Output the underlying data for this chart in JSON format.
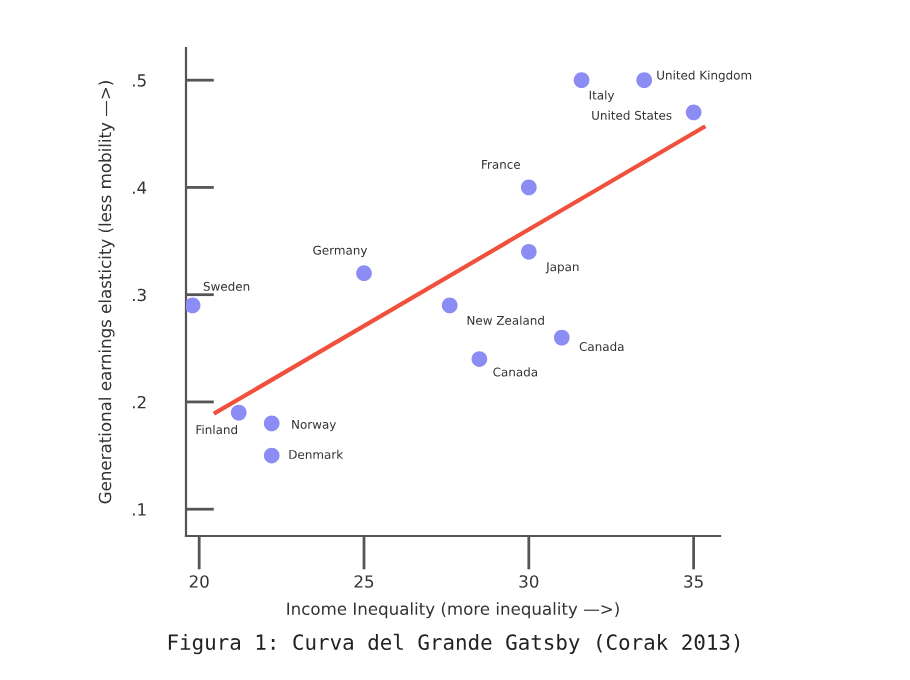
{
  "chart_data": {
    "type": "scatter",
    "xlabel": "Income Inequality (more inequality —>)",
    "ylabel": "Generational earnings elasticity (less mobility —>)",
    "xlim": [
      19.6,
      35.8
    ],
    "ylim": [
      0.075,
      0.53
    ],
    "xticks": [
      20,
      25,
      30,
      35
    ],
    "yticks": [
      {
        "value": 0.1,
        "label": ".1"
      },
      {
        "value": 0.2,
        "label": ".2"
      },
      {
        "value": 0.3,
        "label": ".3"
      },
      {
        "value": 0.4,
        "label": ".4"
      },
      {
        "value": 0.5,
        "label": ".5"
      }
    ],
    "grid": false,
    "series": [
      {
        "type": "scatter",
        "color": "#8c8cf5",
        "marker": "circle",
        "x": [
          19.8,
          25,
          21.2,
          22.2,
          22.2,
          27.6,
          28.5,
          31,
          30,
          30,
          31.6,
          33.5,
          35
        ],
        "values": [
          0.29,
          0.32,
          0.19,
          0.18,
          0.15,
          0.29,
          0.24,
          0.26,
          0.34,
          0.4,
          0.5,
          0.5,
          0.47
        ]
      },
      {
        "type": "line",
        "color": "#f0503c",
        "line_style": "solid",
        "x": [
          20.5,
          35.3
        ],
        "values": [
          0.19,
          0.456
        ]
      }
    ],
    "annotations": [
      {
        "text": "Sweden",
        "x": 19.8,
        "y": 0.29
      },
      {
        "text": "Germany",
        "x": 25,
        "y": 0.32
      },
      {
        "text": "Finland",
        "x": 21.2,
        "y": 0.19
      },
      {
        "text": "Norway",
        "x": 22.2,
        "y": 0.18
      },
      {
        "text": "Denmark",
        "x": 22.2,
        "y": 0.15
      },
      {
        "text": "New Zealand",
        "x": 27.6,
        "y": 0.29
      },
      {
        "text": "Canada",
        "x": 28.5,
        "y": 0.24
      },
      {
        "text": "Canada",
        "x": 31,
        "y": 0.26
      },
      {
        "text": "Japan",
        "x": 30,
        "y": 0.34
      },
      {
        "text": "France",
        "x": 30,
        "y": 0.4
      },
      {
        "text": "Italy",
        "x": 31.6,
        "y": 0.5
      },
      {
        "text": "United Kingdom",
        "x": 33.5,
        "y": 0.5
      },
      {
        "text": "United States",
        "x": 35,
        "y": 0.47
      },
      "Figura 1: Curva del Grande Gatsby (Corak 2013)"
    ]
  }
}
